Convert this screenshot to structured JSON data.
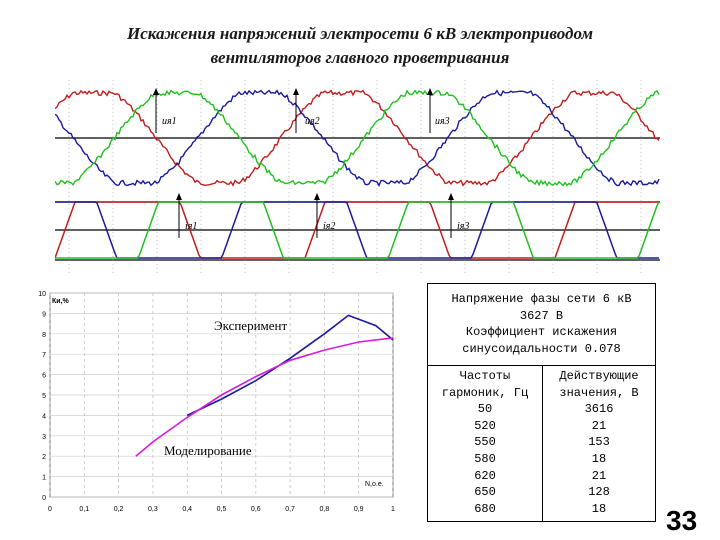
{
  "slide": {
    "title_line1": "Искажения напряжений электросети 6 кВ электроприводом",
    "title_line2": "вентиляторов главного проветривания",
    "page_number": "33"
  },
  "oscillogram": {
    "labels": [
      "uя1",
      "uя2",
      "uя3",
      "iя1",
      "iя2",
      "iя3"
    ],
    "colors": {
      "red": "#c21d1d",
      "green": "#1fc21f",
      "blue": "#1a1a9c"
    }
  },
  "table": {
    "header_lines": [
      "Напряжение фазы сети 6 кВ",
      "3627 В",
      "Коэффициент искажения",
      "синусоидальности 0.078"
    ],
    "col1_header": [
      "Частоты",
      "гармоник, Гц"
    ],
    "col2_header": [
      "Действующие",
      "значения, В"
    ],
    "rows": [
      [
        "50",
        "3616"
      ],
      [
        "520",
        "21"
      ],
      [
        "550",
        "153"
      ],
      [
        "580",
        "18"
      ],
      [
        "620",
        "21"
      ],
      [
        "650",
        "128"
      ],
      [
        "680",
        "18"
      ]
    ]
  },
  "chart_data": {
    "type": "line",
    "ylabel": "Ки,%",
    "xlabel": "N,o.e.",
    "xlim": [
      0,
      1
    ],
    "ylim": [
      0,
      10
    ],
    "xticks": [
      "0",
      "0,1",
      "0,2",
      "0,3",
      "0,4",
      "0,5",
      "0,6",
      "0,7",
      "0,8",
      "0,9",
      "1"
    ],
    "yticks": [
      "0",
      "1",
      "2",
      "3",
      "4",
      "5",
      "6",
      "7",
      "8",
      "9",
      "10"
    ],
    "series": [
      {
        "name": "Эксперимент",
        "color": "#1a1a9c",
        "x": [
          0.4,
          0.5,
          0.6,
          0.7,
          0.8,
          0.87,
          0.95,
          1.0
        ],
        "y": [
          4.0,
          4.8,
          5.7,
          6.8,
          8.0,
          8.9,
          8.4,
          7.7
        ]
      },
      {
        "name": "Моделирование",
        "color": "#d81bd8",
        "x": [
          0.25,
          0.3,
          0.4,
          0.5,
          0.6,
          0.7,
          0.8,
          0.9,
          1.0
        ],
        "y": [
          2.0,
          2.7,
          3.9,
          5.0,
          5.9,
          6.7,
          7.2,
          7.6,
          7.8
        ]
      }
    ],
    "grid": true
  }
}
